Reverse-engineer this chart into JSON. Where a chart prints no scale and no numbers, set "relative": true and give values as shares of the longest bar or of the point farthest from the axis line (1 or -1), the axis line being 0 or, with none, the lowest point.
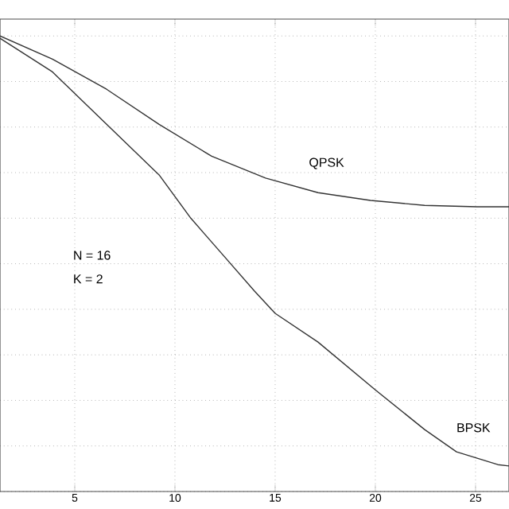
{
  "chart_data": {
    "type": "line",
    "relative": true,
    "xlim": [
      1.27,
      26.67
    ],
    "xticks": [
      5,
      10,
      15,
      20,
      25
    ],
    "grid": true,
    "tick_labels": "x",
    "marker": "none",
    "line_style": "solid",
    "series": [
      {
        "name": "QPSK",
        "color": "#333333",
        "x": [
          1.27,
          3.89,
          6.59,
          9.21,
          11.83,
          14.52,
          17.14,
          19.76,
          22.46,
          25.08,
          26.67
        ],
        "values": [
          1.0,
          0.949,
          0.883,
          0.806,
          0.736,
          0.688,
          0.656,
          0.639,
          0.628,
          0.625,
          0.625
        ]
      },
      {
        "name": "BPSK",
        "color": "#333333",
        "x": [
          1.27,
          3.89,
          6.59,
          9.21,
          10.79,
          12.38,
          13.97,
          15,
          17.14,
          20,
          22.46,
          24.05,
          26.11,
          26.67
        ],
        "values": [
          0.995,
          0.921,
          0.806,
          0.695,
          0.6,
          0.52,
          0.44,
          0.391,
          0.328,
          0.223,
          0.136,
          0.087,
          0.059,
          0.056
        ]
      }
    ],
    "annotations": [
      "N = 16",
      "K = 2"
    ]
  }
}
